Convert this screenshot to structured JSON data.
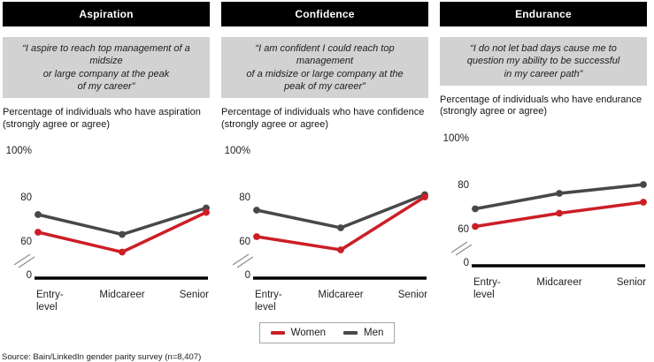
{
  "panels": [
    {
      "title": "Aspiration",
      "quote": "“I aspire to reach top management of a midsize\nor large company at the peak\nof my career”",
      "description": "Percentage of individuals who have aspiration\n(strongly agree or agree)"
    },
    {
      "title": "Confidence",
      "quote": "“I am confident I could reach top management\nof a midsize or large company at the\npeak of my career”",
      "description": "Percentage of individuals who have confidence\n(strongly agree or agree)"
    },
    {
      "title": "Endurance",
      "quote": "“I do not let bad days cause me to\nquestion my ability to be successful\nin my career path”",
      "description": "Percentage of individuals who have endurance\n(strongly agree or agree)"
    }
  ],
  "chart_data": [
    {
      "type": "line",
      "title": "Aspiration",
      "categories": [
        "Entry-\nlevel",
        "Midcareer",
        "Senior"
      ],
      "series": [
        {
          "name": "Women",
          "color": "#cc1e26",
          "values": [
            64,
            55,
            73
          ]
        },
        {
          "name": "Men",
          "color": "#48484a",
          "values": [
            72,
            63,
            75
          ]
        }
      ],
      "y_tick_labels": [
        "100%",
        "80",
        "60",
        "0"
      ],
      "ylim": [
        0,
        100
      ],
      "axis_break": true,
      "grid": false,
      "legend_position": "bottom-center-shared"
    },
    {
      "type": "line",
      "title": "Confidence",
      "categories": [
        "Entry-\nlevel",
        "Midcareer",
        "Senior"
      ],
      "series": [
        {
          "name": "Women",
          "color": "#cc1e26",
          "values": [
            62,
            56,
            80
          ]
        },
        {
          "name": "Men",
          "color": "#48484a",
          "values": [
            74,
            66,
            81
          ]
        }
      ],
      "y_tick_labels": [
        "100%",
        "80",
        "60",
        "0"
      ],
      "ylim": [
        0,
        100
      ],
      "axis_break": true,
      "grid": false,
      "legend_position": "bottom-center-shared"
    },
    {
      "type": "line",
      "title": "Endurance",
      "categories": [
        "Entry-\nlevel",
        "Midcareer",
        "Senior"
      ],
      "series": [
        {
          "name": "Women",
          "color": "#cc1e26",
          "values": [
            61,
            67,
            72
          ]
        },
        {
          "name": "Men",
          "color": "#48484a",
          "values": [
            69,
            76,
            80
          ]
        }
      ],
      "y_tick_labels": [
        "100%",
        "80",
        "60",
        "0"
      ],
      "ylim": [
        0,
        100
      ],
      "axis_break": true,
      "grid": false,
      "legend_position": "bottom-center-shared"
    }
  ],
  "legend": {
    "items": [
      {
        "label": "Women",
        "color": "#cc1e26"
      },
      {
        "label": "Men",
        "color": "#48484a"
      }
    ]
  },
  "source": "Source: Bain/LinkedIn gender parity survey (n=8,407)"
}
